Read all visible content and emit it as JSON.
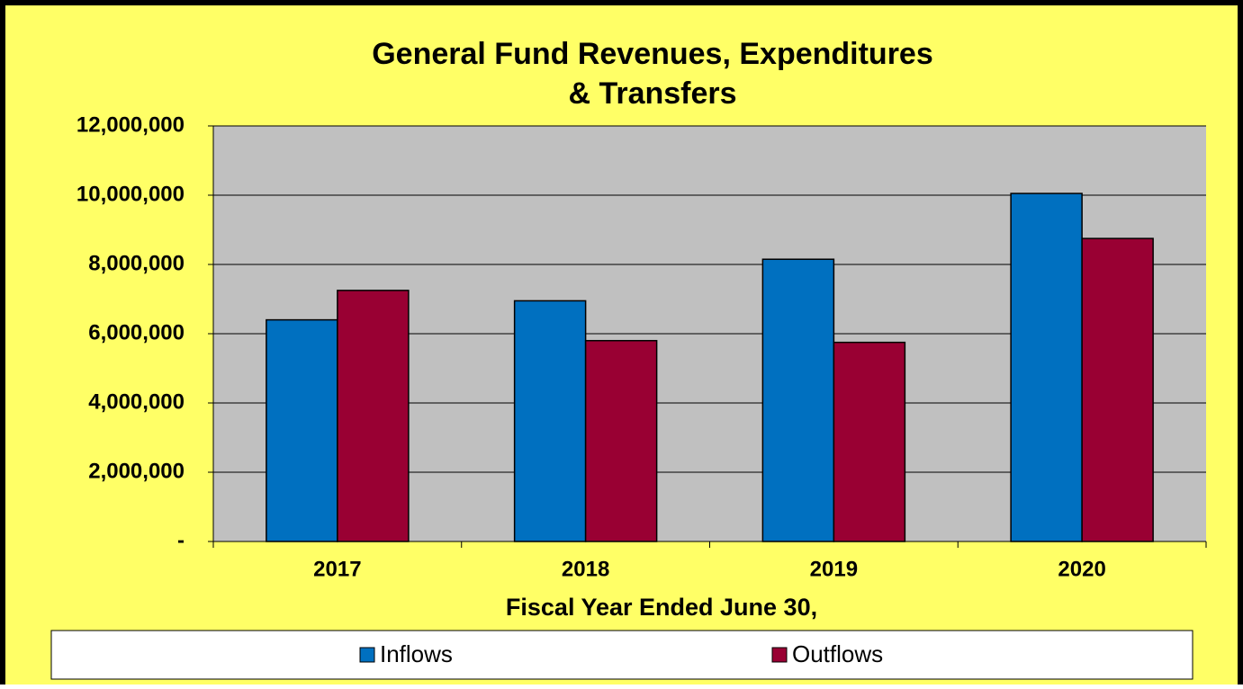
{
  "chart_data": {
    "type": "bar",
    "title": [
      "General Fund Revenues, Expenditures",
      "& Transfers"
    ],
    "x_label": "Fiscal Year Ended June 30,",
    "categories": [
      "2017",
      "2018",
      "2019",
      "2020"
    ],
    "series": [
      {
        "name": "Inflows",
        "color": "#0070c0",
        "values": [
          6400000,
          6950000,
          8150000,
          10050000
        ]
      },
      {
        "name": "Outflows",
        "color": "#990033",
        "values": [
          7250000,
          5800000,
          5750000,
          8750000
        ]
      }
    ],
    "ylim": [
      0,
      12000000
    ],
    "yticks": [
      {
        "value": 0,
        "label": "-"
      },
      {
        "value": 2000000,
        "label": "2,000,000"
      },
      {
        "value": 4000000,
        "label": "4,000,000"
      },
      {
        "value": 6000000,
        "label": "6,000,000"
      },
      {
        "value": 8000000,
        "label": "8,000,000"
      },
      {
        "value": 10000000,
        "label": "10,000,000"
      },
      {
        "value": 12000000,
        "label": "12,000,000"
      }
    ],
    "grid": true,
    "legend": "bottom"
  }
}
